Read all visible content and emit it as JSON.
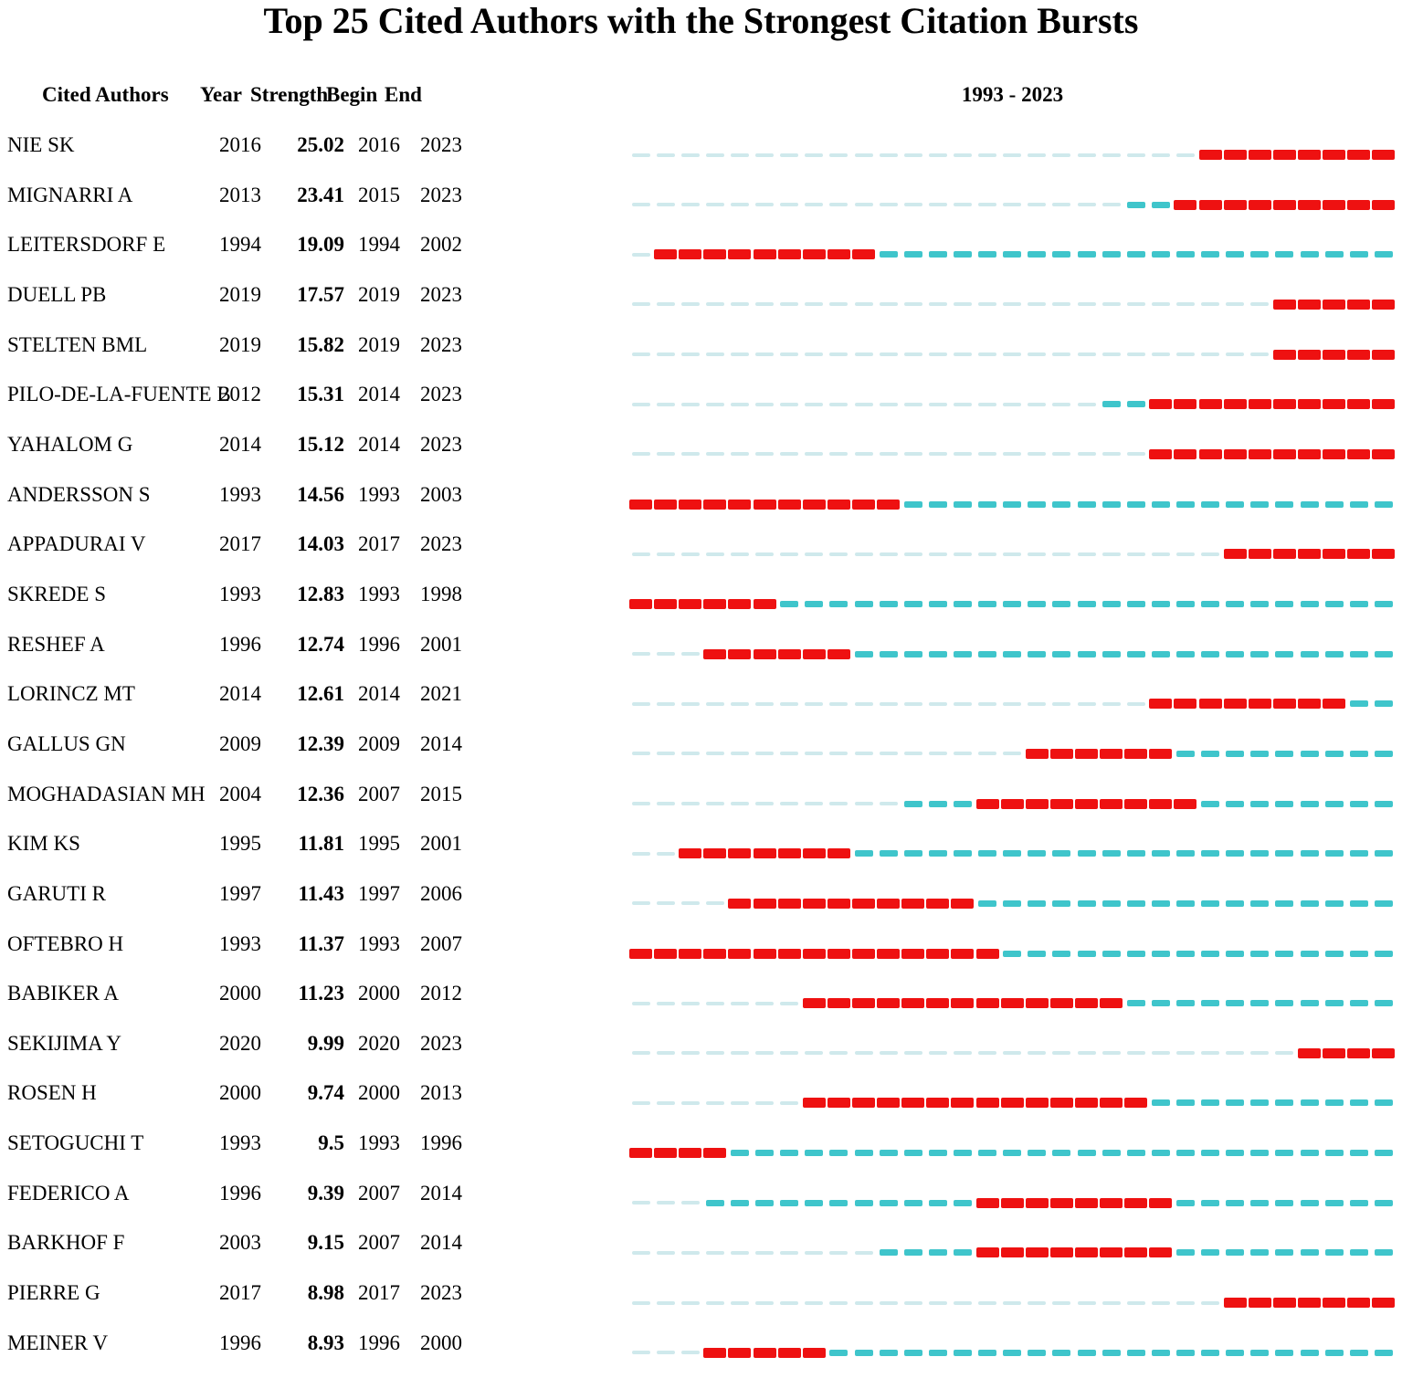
{
  "chart_data": {
    "type": "table",
    "title": "Top 25 Cited Authors with the Strongest Citation Bursts",
    "columns": [
      "Cited Authors",
      "Year",
      "Strength",
      "Begin",
      "End"
    ],
    "timeline_header": "1993 - 2023",
    "timeline_start": 1993,
    "timeline_end": 2023,
    "colors": {
      "burst_red": "#ee1111",
      "active_teal": "#3fc5cb",
      "inactive_pale": "#cfe9ec"
    },
    "rows": [
      {
        "name": "NIE SK",
        "year": "2016",
        "strength": "25.02",
        "begin": "2016",
        "end": "2023"
      },
      {
        "name": "MIGNARRI A",
        "year": "2013",
        "strength": "23.41",
        "begin": "2015",
        "end": "2023"
      },
      {
        "name": "LEITERSDORF E",
        "year": "1994",
        "strength": "19.09",
        "begin": "1994",
        "end": "2002"
      },
      {
        "name": "DUELL PB",
        "year": "2019",
        "strength": "17.57",
        "begin": "2019",
        "end": "2023"
      },
      {
        "name": "STELTEN BML",
        "year": "2019",
        "strength": "15.82",
        "begin": "2019",
        "end": "2023"
      },
      {
        "name": "PILO-DE-LA-FUENTE B",
        "year": "2012",
        "strength": "15.31",
        "begin": "2014",
        "end": "2023"
      },
      {
        "name": "YAHALOM G",
        "year": "2014",
        "strength": "15.12",
        "begin": "2014",
        "end": "2023"
      },
      {
        "name": "ANDERSSON S",
        "year": "1993",
        "strength": "14.56",
        "begin": "1993",
        "end": "2003"
      },
      {
        "name": "APPADURAI V",
        "year": "2017",
        "strength": "14.03",
        "begin": "2017",
        "end": "2023"
      },
      {
        "name": "SKREDE S",
        "year": "1993",
        "strength": "12.83",
        "begin": "1993",
        "end": "1998"
      },
      {
        "name": "RESHEF A",
        "year": "1996",
        "strength": "12.74",
        "begin": "1996",
        "end": "2001"
      },
      {
        "name": "LORINCZ MT",
        "year": "2014",
        "strength": "12.61",
        "begin": "2014",
        "end": "2021"
      },
      {
        "name": "GALLUS GN",
        "year": "2009",
        "strength": "12.39",
        "begin": "2009",
        "end": "2014"
      },
      {
        "name": "MOGHADASIAN MH",
        "year": "2004",
        "strength": "12.36",
        "begin": "2007",
        "end": "2015"
      },
      {
        "name": "KIM KS",
        "year": "1995",
        "strength": "11.81",
        "begin": "1995",
        "end": "2001"
      },
      {
        "name": "GARUTI R",
        "year": "1997",
        "strength": "11.43",
        "begin": "1997",
        "end": "2006"
      },
      {
        "name": "OFTEBRO H",
        "year": "1993",
        "strength": "11.37",
        "begin": "1993",
        "end": "2007"
      },
      {
        "name": "BABIKER A",
        "year": "2000",
        "strength": "11.23",
        "begin": "2000",
        "end": "2012"
      },
      {
        "name": "SEKIJIMA Y",
        "year": "2020",
        "strength": "9.99",
        "begin": "2020",
        "end": "2023"
      },
      {
        "name": "ROSEN H",
        "year": "2000",
        "strength": "9.74",
        "begin": "2000",
        "end": "2013"
      },
      {
        "name": "SETOGUCHI T",
        "year": "1993",
        "strength": "9.5",
        "begin": "1993",
        "end": "1996"
      },
      {
        "name": "FEDERICO A",
        "year": "1996",
        "strength": "9.39",
        "begin": "2007",
        "end": "2014"
      },
      {
        "name": "BARKHOF F",
        "year": "2003",
        "strength": "9.15",
        "begin": "2007",
        "end": "2014"
      },
      {
        "name": "PIERRE G",
        "year": "2017",
        "strength": "8.98",
        "begin": "2017",
        "end": "2023"
      },
      {
        "name": "MEINER V",
        "year": "1996",
        "strength": "8.93",
        "begin": "1996",
        "end": "2000"
      }
    ]
  }
}
